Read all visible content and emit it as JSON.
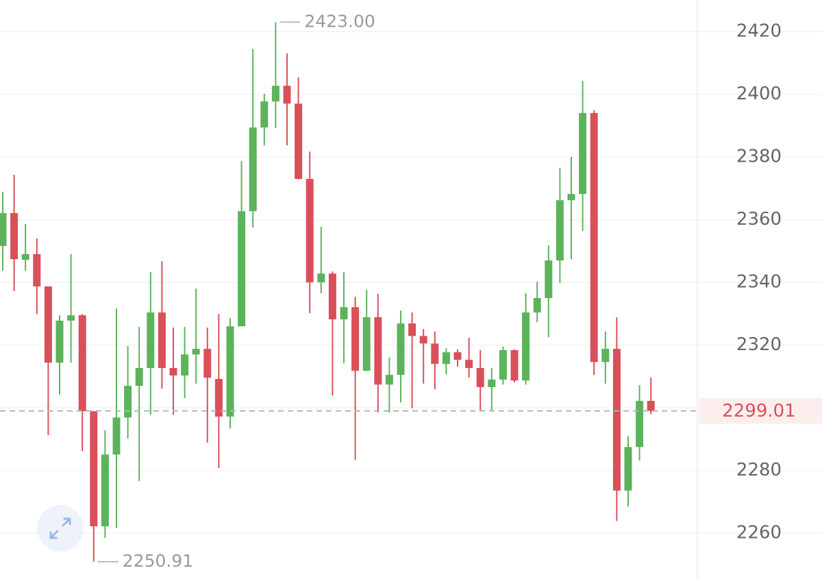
{
  "chart_data": {
    "type": "candlestick",
    "open": [
      2351.6,
      2362.1,
      2347.2,
      2349.0,
      2338.7,
      2314.4,
      2327.8,
      2329.5,
      2298.9,
      2262.2,
      2285.1,
      2296.9,
      2307.0,
      2312.7,
      2330.4,
      2312.7,
      2310.3,
      2317.0,
      2318.8,
      2309.2,
      2297.2,
      2326.0,
      2362.7,
      2389.4,
      2397.7,
      2402.7,
      2397.0,
      2373.0,
      2340.0,
      2342.8,
      2328.2,
      2332.1,
      2311.8,
      2328.9,
      2307.4,
      2310.5,
      2326.9,
      2322.9,
      2320.5,
      2314.0,
      2317.7,
      2315.3,
      2312.7,
      2306.6,
      2309.0,
      2318.4,
      2308.7,
      2330.4,
      2335.0,
      2347.0,
      2366.2,
      2368.2,
      2394.0,
      2314.6,
      2318.8,
      2273.6,
      2287.5,
      2302.2
    ],
    "high": [
      2368.9,
      2374.3,
      2358.6,
      2354.0,
      2338.7,
      2329.5,
      2349.0,
      2329.9,
      2298.9,
      2292.8,
      2331.7,
      2319.7,
      2325.8,
      2343.3,
      2346.8,
      2325.6,
      2325.8,
      2338.0,
      2325.6,
      2329.9,
      2328.6,
      2378.7,
      2414.5,
      2400.1,
      2423,
      2413.0,
      2405.4,
      2381.7,
      2357.7,
      2343.5,
      2343.3,
      2335.4,
      2337.6,
      2336.3,
      2316.0,
      2331.0,
      2330.4,
      2325.1,
      2324.3,
      2319.0,
      2318.6,
      2322.3,
      2318.4,
      2312.7,
      2319.5,
      2318.6,
      2336.5,
      2340.2,
      2351.8,
      2376.5,
      2380.0,
      2404.3,
      2394.9,
      2324.3,
      2328.9,
      2291.0,
      2307.2,
      2309.6
    ],
    "low": [
      2343.7,
      2337.2,
      2343.7,
      2329.9,
      2291.3,
      2304.2,
      2314.4,
      2286.2,
      2250.91,
      2258.5,
      2261.7,
      2290.2,
      2276.6,
      2297.8,
      2306.1,
      2297.8,
      2303.1,
      2307.7,
      2288.9,
      2280.8,
      2293.4,
      2326.0,
      2357.5,
      2383.7,
      2389.2,
      2383.7,
      2372.8,
      2330.2,
      2336.5,
      2303.9,
      2314.2,
      2283.4,
      2311.8,
      2298.5,
      2298.5,
      2301.7,
      2299.8,
      2307.7,
      2305.9,
      2310.7,
      2313.1,
      2309.6,
      2299.1,
      2299.1,
      2307.4,
      2308.1,
      2307.4,
      2327.3,
      2322.5,
      2339.8,
      2347.4,
      2356.4,
      2310.5,
      2307.7,
      2263.9,
      2268.5,
      2283.2,
      2298.0
    ],
    "close": [
      2362.1,
      2347.4,
      2349.0,
      2338.7,
      2314.4,
      2327.8,
      2329.5,
      2298.9,
      2262.2,
      2285.1,
      2296.9,
      2307.0,
      2312.7,
      2330.4,
      2312.7,
      2310.3,
      2317.0,
      2318.8,
      2309.6,
      2297.2,
      2326.0,
      2362.7,
      2389.4,
      2397.7,
      2402.7,
      2397.0,
      2373.0,
      2340.0,
      2342.8,
      2328.2,
      2332.1,
      2311.8,
      2328.9,
      2307.4,
      2310.5,
      2326.9,
      2322.9,
      2320.5,
      2314.0,
      2317.7,
      2315.3,
      2312.7,
      2306.6,
      2309.0,
      2318.4,
      2308.7,
      2330.4,
      2335.0,
      2347.0,
      2366.2,
      2368.2,
      2394.0,
      2314.6,
      2318.8,
      2273.6,
      2287.5,
      2302.2,
      2299.01
    ],
    "up_color": "#5cb35c",
    "down_color": "#d9505a",
    "ylim": [
      2245.4,
      2430.05
    ],
    "yticks": [
      2260,
      2280,
      2300,
      2320,
      2340,
      2360,
      2380,
      2400,
      2420
    ],
    "grid": true,
    "high_label": {
      "value": 2423,
      "label": "2423.00"
    },
    "low_label": 2250.91,
    "last_price": 2299.01
  }
}
